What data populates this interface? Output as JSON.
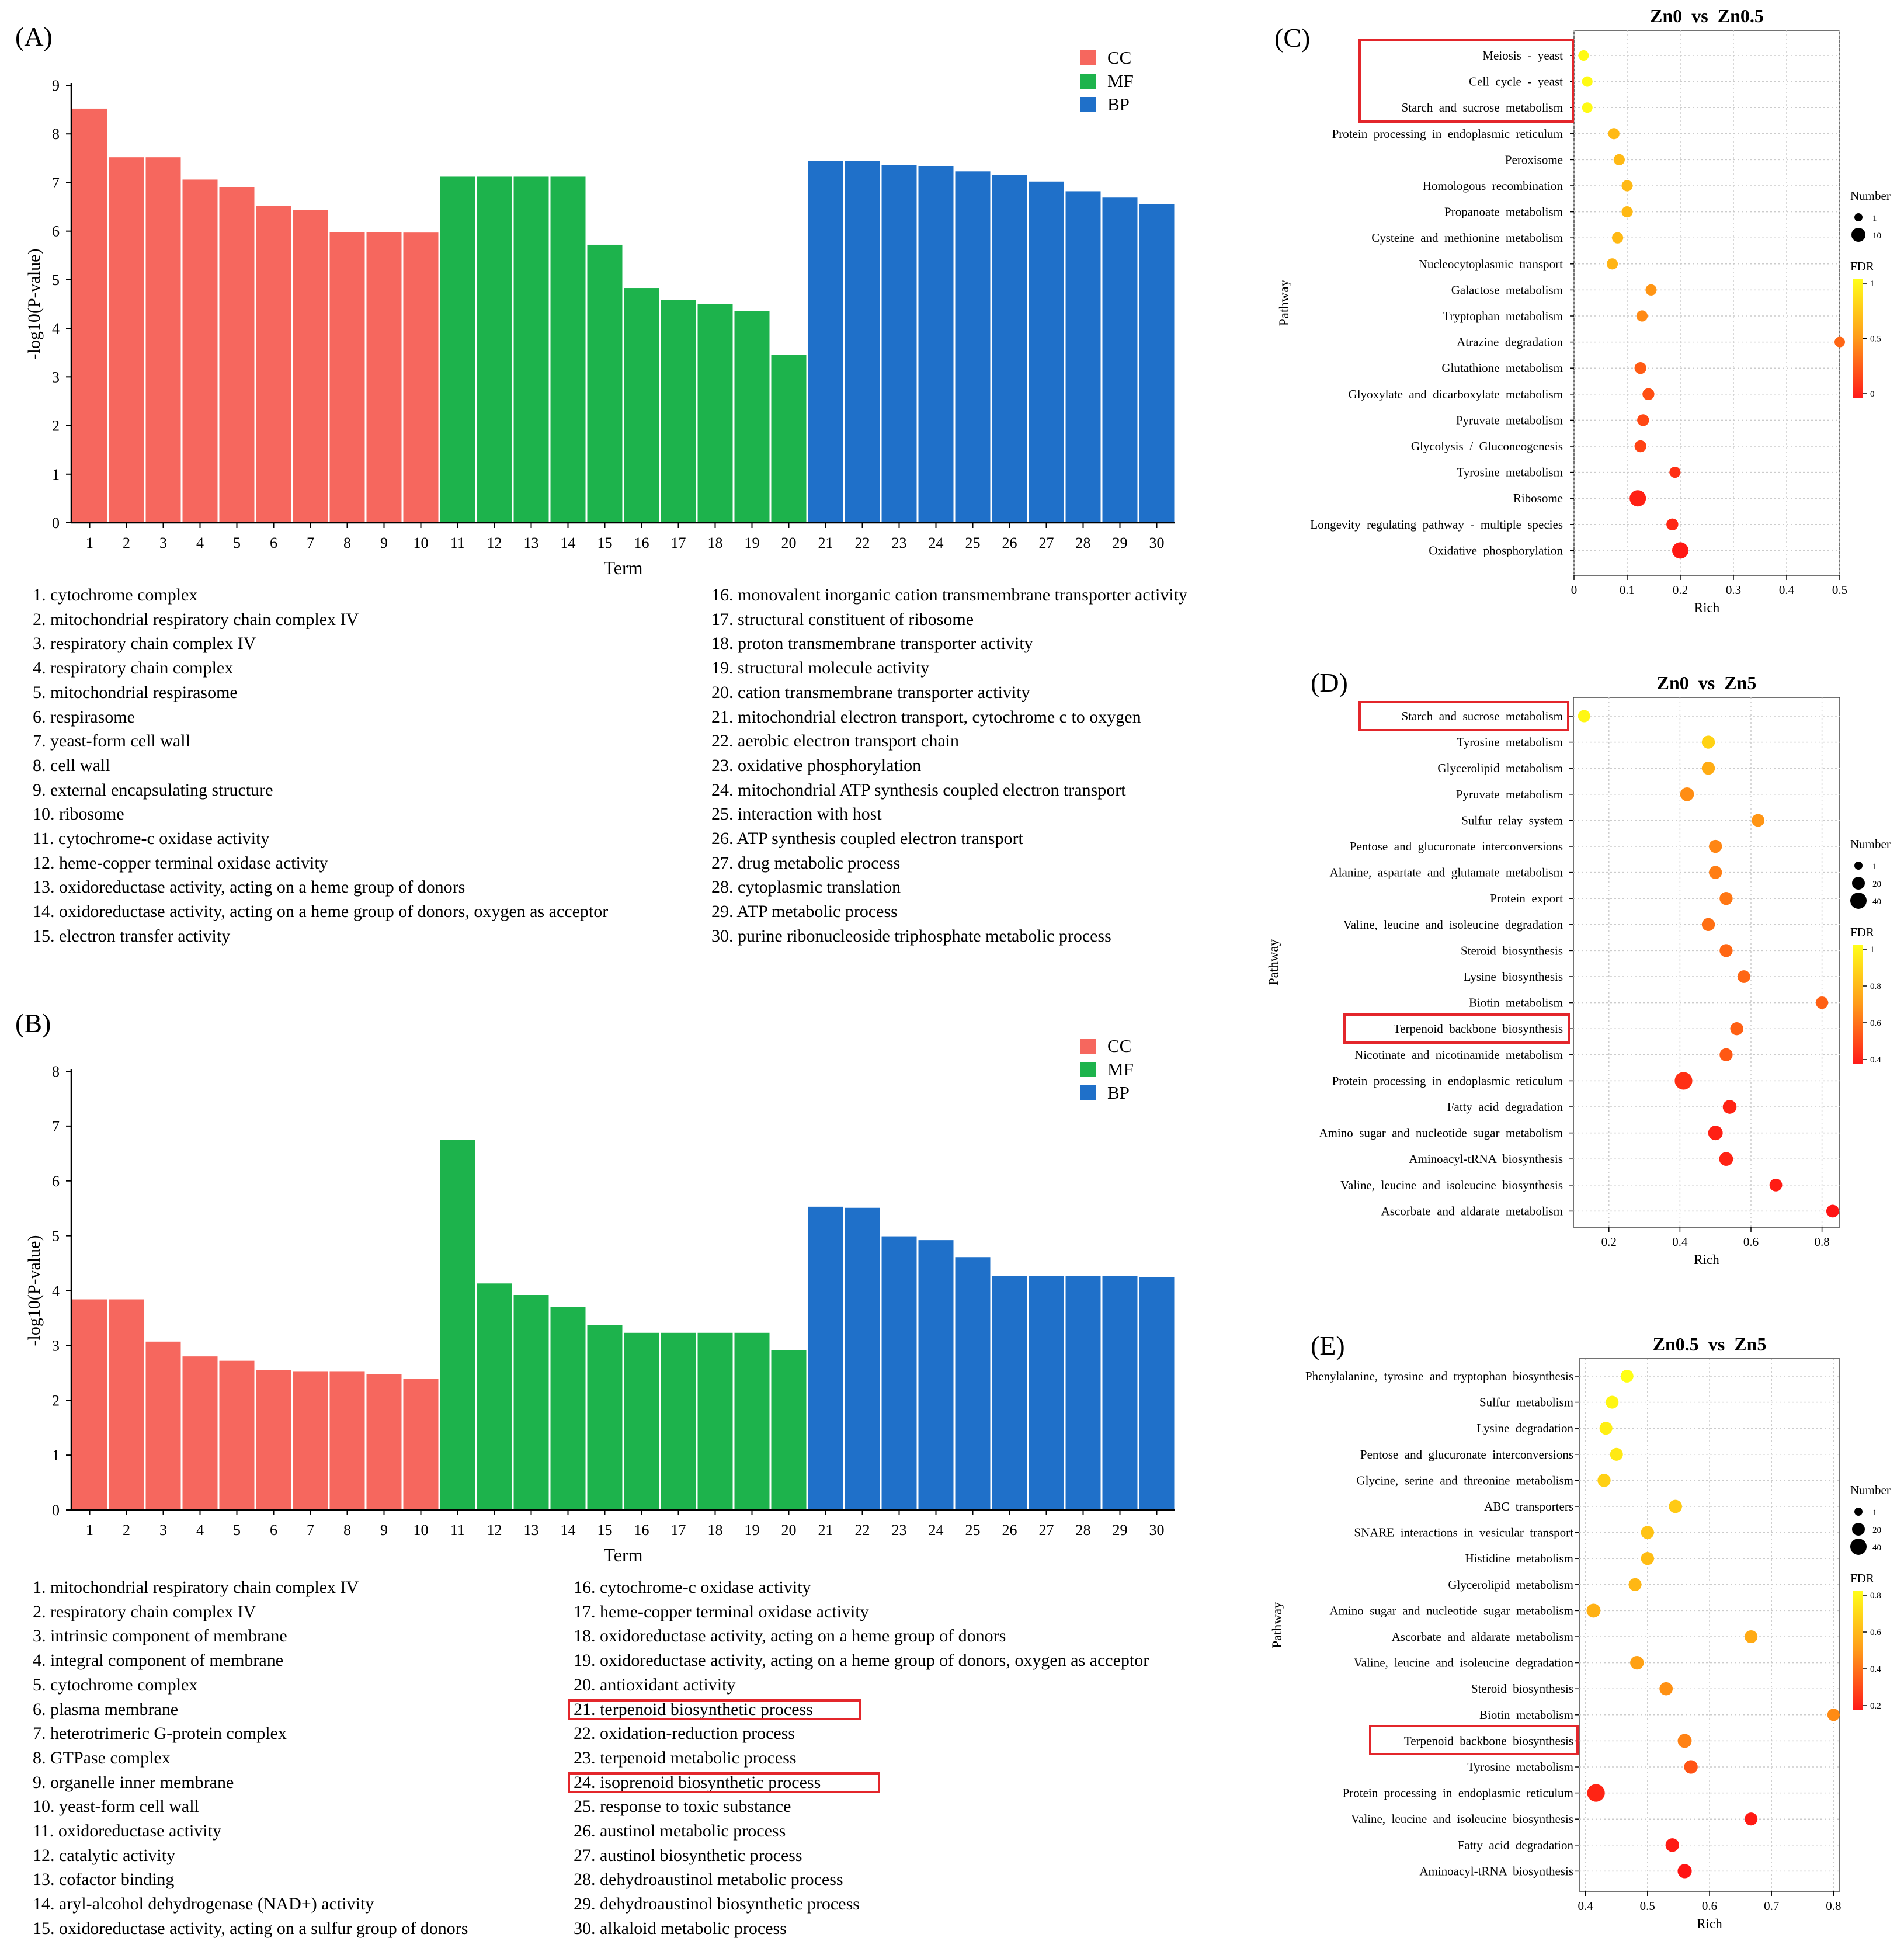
{
  "colors": {
    "CC": "#f6675e",
    "MF": "#1db34c",
    "BP": "#1f70c9",
    "highlight": "#e3262b"
  },
  "chart_data": [
    {
      "panel": "(A)",
      "type": "bar",
      "title": "",
      "xlabel": "Term",
      "ylabel": "-log10(P-value)",
      "ylim": [
        0,
        9
      ],
      "yticks": [
        0,
        1,
        2,
        3,
        4,
        5,
        6,
        7,
        8,
        9
      ],
      "categories": [
        "1",
        "2",
        "3",
        "4",
        "5",
        "6",
        "7",
        "8",
        "9",
        "10",
        "11",
        "12",
        "13",
        "14",
        "15",
        "16",
        "17",
        "18",
        "19",
        "20",
        "21",
        "22",
        "23",
        "24",
        "25",
        "26",
        "27",
        "28",
        "29",
        "30"
      ],
      "groups": [
        "CC",
        "CC",
        "CC",
        "CC",
        "CC",
        "CC",
        "CC",
        "CC",
        "CC",
        "CC",
        "MF",
        "MF",
        "MF",
        "MF",
        "MF",
        "MF",
        "MF",
        "MF",
        "MF",
        "MF",
        "BP",
        "BP",
        "BP",
        "BP",
        "BP",
        "BP",
        "BP",
        "BP",
        "BP",
        "BP"
      ],
      "values": [
        8.52,
        7.52,
        7.52,
        7.06,
        6.9,
        6.52,
        6.44,
        5.98,
        5.98,
        5.97,
        7.12,
        7.12,
        7.12,
        7.12,
        5.72,
        4.83,
        4.58,
        4.5,
        4.36,
        3.45,
        7.44,
        7.44,
        7.36,
        7.33,
        7.23,
        7.15,
        7.02,
        6.82,
        6.69,
        6.55
      ],
      "legend": [
        "CC",
        "MF",
        "BP"
      ],
      "terms": [
        "1. cytochrome complex",
        "2. mitochondrial respiratory chain complex IV",
        "3. respiratory chain complex IV",
        "4. respiratory chain complex",
        "5. mitochondrial respirasome",
        "6. respirasome",
        "7. yeast-form cell wall",
        "8. cell wall",
        "9. external encapsulating structure",
        "10. ribosome",
        "11. cytochrome-c oxidase activity",
        "12. heme-copper terminal oxidase activity",
        "13. oxidoreductase activity, acting on a heme group of donors",
        "14. oxidoreductase activity, acting on a heme group of donors, oxygen as acceptor",
        "15. electron transfer activity",
        "16. monovalent inorganic cation transmembrane transporter activity",
        "17. structural constituent of ribosome",
        "18. proton transmembrane transporter activity",
        "19. structural molecule activity",
        "20. cation transmembrane transporter activity",
        "21. mitochondrial electron transport, cytochrome c to oxygen",
        "22. aerobic electron transport chain",
        "23. oxidative phosphorylation",
        "24. mitochondrial ATP synthesis coupled electron transport",
        "25. interaction with host",
        "26. ATP synthesis coupled electron transport",
        "27. drug metabolic process",
        "28. cytoplasmic translation",
        "29. ATP metabolic process",
        "30. purine ribonucleoside triphosphate metabolic process"
      ],
      "highlight_terms": []
    },
    {
      "panel": "(B)",
      "type": "bar",
      "title": "",
      "xlabel": "Term",
      "ylabel": "-log10(P-value)",
      "ylim": [
        0,
        8
      ],
      "yticks": [
        0,
        1,
        2,
        3,
        4,
        5,
        6,
        7,
        8
      ],
      "categories": [
        "1",
        "2",
        "3",
        "4",
        "5",
        "6",
        "7",
        "8",
        "9",
        "10",
        "11",
        "12",
        "13",
        "14",
        "15",
        "16",
        "17",
        "18",
        "19",
        "20",
        "21",
        "22",
        "23",
        "24",
        "25",
        "26",
        "27",
        "28",
        "29",
        "30"
      ],
      "groups": [
        "CC",
        "CC",
        "CC",
        "CC",
        "CC",
        "CC",
        "CC",
        "CC",
        "CC",
        "CC",
        "MF",
        "MF",
        "MF",
        "MF",
        "MF",
        "MF",
        "MF",
        "MF",
        "MF",
        "MF",
        "BP",
        "BP",
        "BP",
        "BP",
        "BP",
        "BP",
        "BP",
        "BP",
        "BP",
        "BP"
      ],
      "values": [
        3.84,
        3.84,
        3.07,
        2.8,
        2.72,
        2.55,
        2.52,
        2.52,
        2.48,
        2.39,
        6.75,
        4.13,
        3.92,
        3.7,
        3.37,
        3.23,
        3.23,
        3.23,
        3.23,
        2.91,
        5.53,
        5.51,
        4.99,
        4.92,
        4.61,
        4.27,
        4.27,
        4.27,
        4.27,
        4.25
      ],
      "legend": [
        "CC",
        "MF",
        "BP"
      ],
      "terms": [
        "1. mitochondrial respiratory chain complex IV",
        "2. respiratory chain complex IV",
        "3. intrinsic component of membrane",
        "4. integral component of membrane",
        "5. cytochrome complex",
        "6. plasma membrane",
        "7. heterotrimeric G-protein complex",
        "8. GTPase complex",
        "9. organelle inner membrane",
        "10. yeast-form cell wall",
        "11. oxidoreductase activity",
        "12. catalytic activity",
        "13. cofactor binding",
        "14. aryl-alcohol dehydrogenase (NAD+) activity",
        "15. oxidoreductase activity, acting on a sulfur group of donors",
        "16. cytochrome-c oxidase activity",
        "17. heme-copper terminal oxidase activity",
        "18. oxidoreductase activity, acting on a heme group of donors",
        "19. oxidoreductase activity, acting on a heme group of donors, oxygen as acceptor",
        "20. antioxidant activity",
        "21. terpenoid biosynthetic process",
        "22. oxidation-reduction process",
        "23. terpenoid metabolic process",
        "24. isoprenoid biosynthetic process",
        "25. response to toxic substance",
        "26. austinol metabolic process",
        "27. austinol biosynthetic process",
        "28. dehydroaustinol metabolic process",
        "29. dehydroaustinol biosynthetic process",
        "30. alkaloid metabolic process"
      ],
      "highlight_terms": [
        21,
        24
      ]
    },
    {
      "panel": "(C)",
      "type": "scatter",
      "title": "Zn0  vs  Zn0.5",
      "xlabel": "Rich",
      "ylabel": "Pathway",
      "xlim": [
        0,
        0.5
      ],
      "xticks": [
        "0",
        "0.1",
        "0.2",
        "0.3",
        "0.4",
        "0.5"
      ],
      "xtick_values": [
        0,
        0.1,
        0.2,
        0.3,
        0.4,
        0.5
      ],
      "size_legend_title": "Number",
      "size_legend": [
        "1",
        "10"
      ],
      "color_legend_title": "FDR",
      "color_ticks": [
        "1",
        "0.5",
        "0"
      ],
      "pathways": [
        "Meiosis  -  yeast",
        "Cell  cycle  -  yeast",
        "Starch  and  sucrose  metabolism",
        "Protein  processing  in  endoplasmic  reticulum",
        "Peroxisome",
        "Homologous  recombination",
        "Propanoate  metabolism",
        "Cysteine  and  methionine  metabolism",
        "Nucleocytoplasmic  transport",
        "Galactose  metabolism",
        "Tryptophan  metabolism",
        "Atrazine  degradation",
        "Glutathione  metabolism",
        "Glyoxylate  and  dicarboxylate  metabolism",
        "Pyruvate  metabolism",
        "Glycolysis  /  Gluconeogenesis",
        "Tyrosine  metabolism",
        "Ribosome",
        "Longevity  regulating  pathway  -  multiple  species",
        "Oxidative  phosphorylation"
      ],
      "rich": [
        0.018,
        0.025,
        0.025,
        0.075,
        0.085,
        0.1,
        0.1,
        0.082,
        0.072,
        0.145,
        0.128,
        0.5,
        0.125,
        0.14,
        0.13,
        0.125,
        0.19,
        0.12,
        0.185,
        0.2
      ],
      "number": [
        1,
        1,
        1,
        2,
        2,
        2,
        2,
        2,
        2,
        2,
        2,
        1,
        3,
        3,
        3,
        3,
        2,
        10,
        3,
        10
      ],
      "fdr": [
        0.98,
        0.98,
        0.98,
        0.7,
        0.7,
        0.7,
        0.7,
        0.7,
        0.68,
        0.55,
        0.5,
        0.35,
        0.3,
        0.25,
        0.22,
        0.2,
        0.12,
        0.05,
        0.08,
        0.02
      ],
      "highlight_rows": [
        0,
        1,
        2
      ]
    },
    {
      "panel": "(D)",
      "type": "scatter",
      "title": "Zn0  vs  Zn5",
      "xlabel": "Rich",
      "ylabel": "Pathway",
      "xlim": [
        0.1,
        0.85
      ],
      "xticks": [
        "0.2",
        "0.4",
        "0.6",
        "0.8"
      ],
      "xtick_values": [
        0.2,
        0.4,
        0.6,
        0.8
      ],
      "size_legend_title": "Number",
      "size_legend": [
        "1",
        "20",
        "40"
      ],
      "color_legend_title": "FDR",
      "color_ticks": [
        "1",
        "0.8",
        "0.6",
        "0.4"
      ],
      "pathways": [
        "Starch  and  sucrose  metabolism",
        "Tyrosine  metabolism",
        "Glycerolipid  metabolism",
        "Pyruvate  metabolism",
        "Sulfur  relay  system",
        "Pentose  and  glucuronate  interconversions",
        "Alanine,  aspartate  and  glutamate  metabolism",
        "Protein  export",
        "Valine,  leucine  and  isoleucine  degradation",
        "Steroid  biosynthesis",
        "Lysine  biosynthesis",
        "Biotin  metabolism",
        "Terpenoid  backbone  biosynthesis",
        "Nicotinate  and  nicotinamide  metabolism",
        "Protein  processing  in  endoplasmic  reticulum",
        "Fatty  acid  degradation",
        "Amino  sugar  and  nucleotide  sugar  metabolism",
        "Aminoacyl-tRNA  biosynthesis",
        "Valine,  leucine  and  isoleucine  biosynthesis",
        "Ascorbate  and  aldarate  metabolism"
      ],
      "rich": [
        0.13,
        0.48,
        0.48,
        0.42,
        0.62,
        0.5,
        0.5,
        0.53,
        0.48,
        0.53,
        0.58,
        0.8,
        0.56,
        0.53,
        0.41,
        0.54,
        0.5,
        0.53,
        0.67,
        0.83
      ],
      "number": [
        5,
        10,
        10,
        15,
        8,
        10,
        10,
        10,
        10,
        10,
        8,
        6,
        10,
        10,
        40,
        15,
        20,
        15,
        8,
        8
      ],
      "fdr": [
        0.98,
        0.88,
        0.78,
        0.7,
        0.72,
        0.68,
        0.66,
        0.64,
        0.62,
        0.6,
        0.6,
        0.58,
        0.58,
        0.56,
        0.45,
        0.42,
        0.41,
        0.42,
        0.4,
        0.38
      ],
      "highlight_rows": [
        0,
        12
      ]
    },
    {
      "panel": "(E)",
      "type": "scatter",
      "title": "Zn0.5  vs  Zn5",
      "xlabel": "Rich",
      "ylabel": "Pathway",
      "xlim": [
        0.39,
        0.81
      ],
      "xticks": [
        "0.4",
        "0.5",
        "0.6",
        "0.7",
        "0.8"
      ],
      "xtick_values": [
        0.4,
        0.5,
        0.6,
        0.7,
        0.8
      ],
      "size_legend_title": "Number",
      "size_legend": [
        "1",
        "20",
        "40"
      ],
      "color_legend_title": "FDR",
      "color_ticks": [
        "0.8",
        "0.6",
        "0.4",
        "0.2"
      ],
      "pathways": [
        "Phenylalanine,  tyrosine  and  tryptophan  biosynthesis",
        "Sulfur  metabolism",
        "Lysine  degradation",
        "Pentose  and  glucuronate  interconversions",
        "Glycine,  serine  and  threonine  metabolism",
        "ABC  transporters",
        "SNARE  interactions  in  vesicular  transport",
        "Histidine  metabolism",
        "Glycerolipid  metabolism",
        "Amino  sugar  and  nucleotide  sugar  metabolism",
        "Ascorbate  and  aldarate  metabolism",
        "Valine,  leucine  and  isoleucine  degradation",
        "Steroid  biosynthesis",
        "Biotin  metabolism",
        "Terpenoid  backbone  biosynthesis",
        "Tyrosine  metabolism",
        "Protein  processing  in  endoplasmic  reticulum",
        "Valine,  leucine  and  isoleucine  biosynthesis",
        "Fatty  acid  degradation",
        "Aminoacyl-tRNA  biosynthesis"
      ],
      "rich": [
        0.467,
        0.443,
        0.433,
        0.45,
        0.43,
        0.545,
        0.5,
        0.5,
        0.48,
        0.413,
        0.667,
        0.483,
        0.53,
        0.8,
        0.56,
        0.57,
        0.417,
        0.667,
        0.54,
        0.56
      ],
      "number": [
        7,
        8,
        8,
        8,
        9,
        10,
        9,
        9,
        8,
        14,
        8,
        12,
        10,
        5,
        14,
        12,
        35,
        8,
        12,
        15
      ],
      "fdr": [
        0.85,
        0.82,
        0.8,
        0.78,
        0.7,
        0.68,
        0.66,
        0.64,
        0.62,
        0.6,
        0.58,
        0.55,
        0.5,
        0.48,
        0.45,
        0.3,
        0.15,
        0.12,
        0.12,
        0.1
      ],
      "highlight_rows": [
        14
      ]
    }
  ]
}
